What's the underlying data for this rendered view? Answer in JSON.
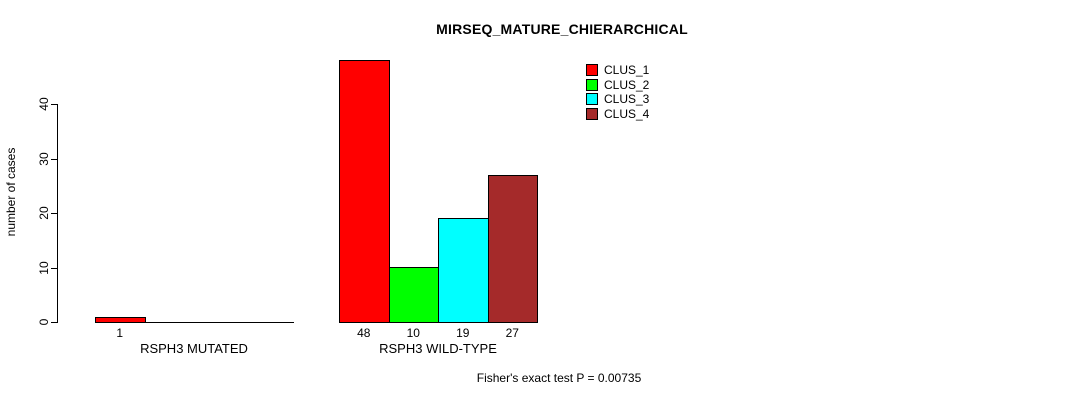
{
  "chart_data": {
    "type": "bar",
    "title": "MIRSEQ_MATURE_CHIERARCHICAL",
    "ylabel": "number of cases",
    "xlabel": "",
    "yticks": [
      0,
      10,
      20,
      30,
      40
    ],
    "ylim": [
      0,
      48
    ],
    "grid": false,
    "legend_position": "top-right",
    "categories": [
      "RSPH3 MUTATED",
      "RSPH3 WILD-TYPE"
    ],
    "series": [
      {
        "name": "CLUS_1",
        "color": "#FF0000",
        "values": [
          1,
          48
        ]
      },
      {
        "name": "CLUS_2",
        "color": "#00FF00",
        "values": [
          0,
          10
        ]
      },
      {
        "name": "CLUS_3",
        "color": "#00FFFF",
        "values": [
          0,
          19
        ]
      },
      {
        "name": "CLUS_4",
        "color": "#A52A2A",
        "values": [
          0,
          27
        ]
      }
    ],
    "bar_value_labels_shown_for_nonzero_only": true,
    "annotation": "Fisher's exact test P = 0.00735"
  }
}
